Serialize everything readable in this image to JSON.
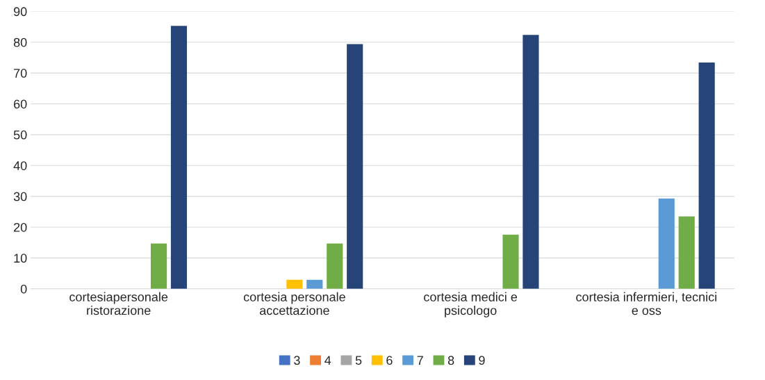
{
  "chart_data": {
    "type": "bar",
    "categories": [
      "cortesiapersonale\nristorazione",
      "cortesia personale\naccettazione",
      "cortesia medici e\npsicologo",
      "cortesia infermieri, tecnici\ne oss"
    ],
    "series": [
      {
        "name": "3",
        "color": "#4472c4",
        "values": [
          null,
          null,
          null,
          null
        ]
      },
      {
        "name": "4",
        "color": "#ed7d31",
        "values": [
          null,
          null,
          null,
          null
        ]
      },
      {
        "name": "5",
        "color": "#a5a5a5",
        "values": [
          null,
          null,
          null,
          null
        ]
      },
      {
        "name": "6",
        "color": "#ffc000",
        "values": [
          null,
          2.9,
          null,
          null
        ]
      },
      {
        "name": "7",
        "color": "#5b9bd5",
        "values": [
          null,
          2.9,
          null,
          29.3
        ]
      },
      {
        "name": "8",
        "color": "#70ad47",
        "values": [
          14.7,
          14.7,
          17.6,
          23.5
        ]
      },
      {
        "name": "9",
        "color": "#264478",
        "values": [
          85.3,
          79.4,
          82.4,
          73.4
        ]
      }
    ],
    "ylim": [
      0,
      90
    ],
    "yticks": [
      0,
      10,
      20,
      30,
      40,
      50,
      60,
      70,
      80,
      90
    ],
    "grid": "y",
    "legend": "bottom"
  }
}
